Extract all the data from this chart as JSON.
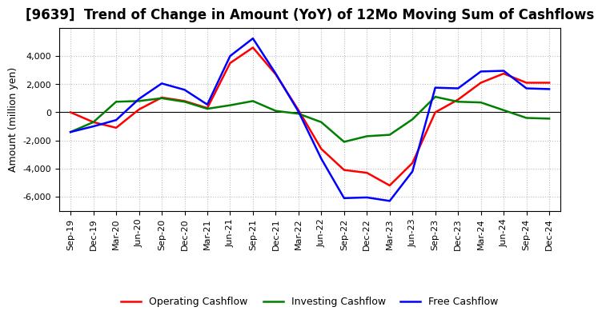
{
  "title": "[9639]  Trend of Change in Amount (YoY) of 12Mo Moving Sum of Cashflows",
  "ylabel": "Amount (million yen)",
  "x_labels": [
    "Sep-19",
    "Dec-19",
    "Mar-20",
    "Jun-20",
    "Sep-20",
    "Dec-20",
    "Mar-21",
    "Jun-21",
    "Sep-21",
    "Dec-21",
    "Mar-22",
    "Jun-22",
    "Sep-22",
    "Dec-22",
    "Mar-23",
    "Jun-23",
    "Sep-23",
    "Dec-23",
    "Mar-24",
    "Jun-24",
    "Sep-24",
    "Dec-24"
  ],
  "operating_cashflow": [
    0,
    -700,
    -1100,
    200,
    1050,
    800,
    300,
    3500,
    4600,
    2700,
    150,
    -2600,
    -4100,
    -4300,
    -5200,
    -3600,
    0,
    900,
    2100,
    2750,
    2100,
    2100
  ],
  "investing_cashflow": [
    -1400,
    -700,
    750,
    800,
    1000,
    750,
    250,
    500,
    800,
    100,
    -100,
    -700,
    -2100,
    -1700,
    -1600,
    -500,
    1100,
    750,
    700,
    150,
    -400,
    -450
  ],
  "free_cashflow": [
    -1400,
    -1000,
    -550,
    950,
    2050,
    1600,
    550,
    4000,
    5250,
    2750,
    50,
    -3300,
    -6100,
    -6050,
    -6300,
    -4200,
    1750,
    1700,
    2900,
    2950,
    1700,
    1650
  ],
  "operating_color": "#ff0000",
  "investing_color": "#008000",
  "free_color": "#0000ff",
  "ylim": [
    -7000,
    6000
  ],
  "yticks": [
    -6000,
    -4000,
    -2000,
    0,
    2000,
    4000
  ],
  "plot_bg_color": "#f0f0f0",
  "fig_bg_color": "#ffffff",
  "grid_color": "#bbbbbb",
  "title_fontsize": 12,
  "axis_fontsize": 9,
  "tick_fontsize": 8,
  "legend_fontsize": 9
}
